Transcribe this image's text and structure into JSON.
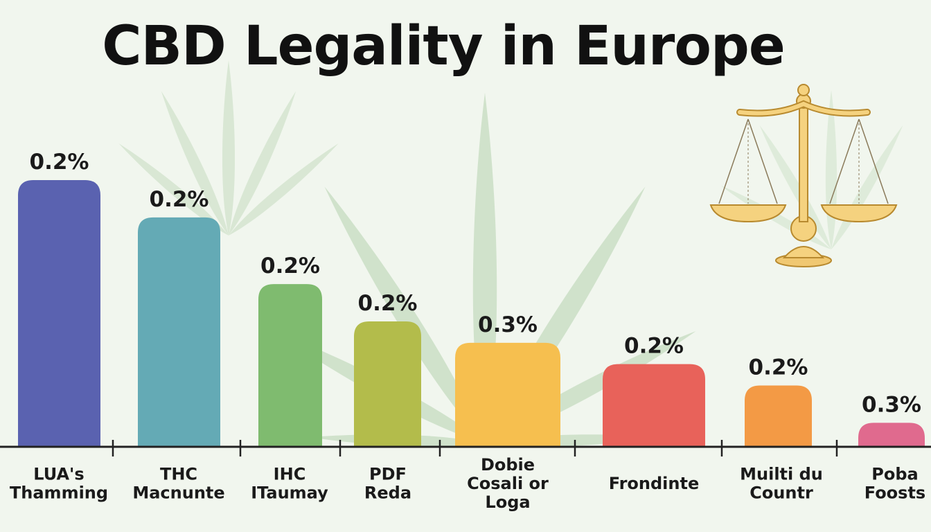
{
  "title": "CBD Legality in Europe",
  "chart_data": {
    "type": "bar",
    "title": "CBD Legality in Europe",
    "categories": [
      [
        "LUA's",
        "Thamming"
      ],
      [
        "THC",
        "Macnunte"
      ],
      [
        "IHC",
        "ITaumay"
      ],
      [
        "PDF",
        "Reda"
      ],
      [
        "Dobie",
        "Cosali or",
        "Loga"
      ],
      [
        "Frondinte"
      ],
      [
        "Muilti du",
        "Countr"
      ],
      [
        "Poba",
        "Foosts"
      ]
    ],
    "value_labels": [
      "0.2%",
      "0.2%",
      "0.2%",
      "0.2%",
      "0.3%",
      "0.2%",
      "0.2%",
      "0.3%"
    ],
    "bar_levels": [
      100,
      86,
      61,
      47,
      39,
      31,
      23,
      9
    ],
    "colors": [
      "#5a62b0",
      "#64aab5",
      "#7fbb6f",
      "#b3bc4b",
      "#f6bf4f",
      "#e8625a",
      "#f39a45",
      "#e06a8e"
    ],
    "xlabel": "",
    "ylabel": "",
    "grid": false,
    "legend": "none"
  },
  "icons": [
    "cannabis-leaf-icon",
    "scales-of-justice-icon"
  ]
}
